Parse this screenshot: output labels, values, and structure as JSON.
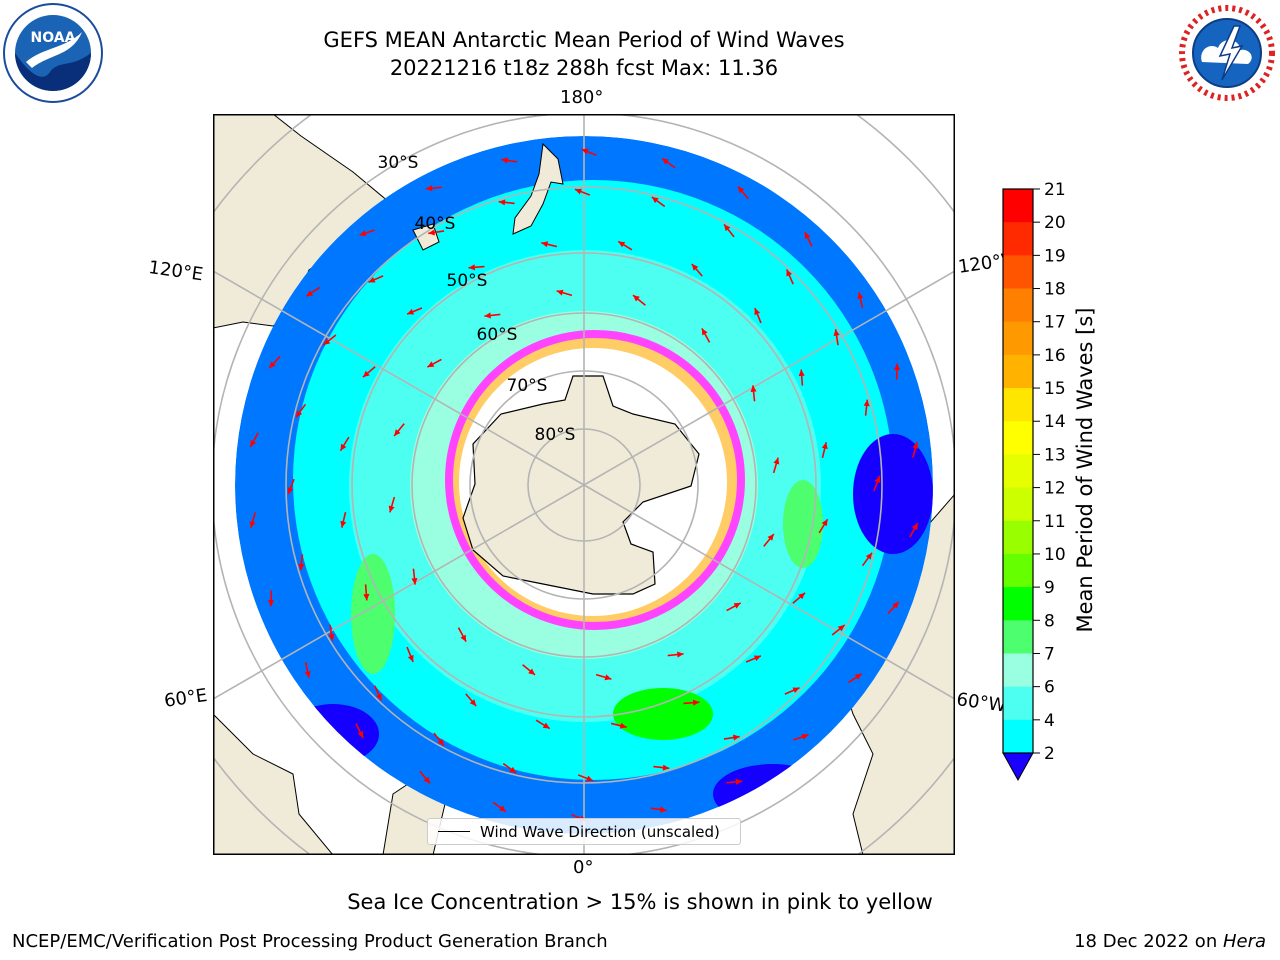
{
  "header": {
    "title_line1": "GEFS MEAN Antarctic Mean Period of Wind Waves",
    "title_line2": "20221216 t18z 288h fcst   Max: 11.36"
  },
  "logos": {
    "left": "NOAA",
    "right": "NATIONAL WEATHER SERVICE"
  },
  "map": {
    "projection": "south polar stereographic",
    "longitude_labels": {
      "top": "180°",
      "bottom": "0°",
      "upper_left": "120°E",
      "upper_right": "120°W",
      "lower_left": "60°E",
      "lower_right": "60°W"
    },
    "latitude_labels": [
      "30°S",
      "40°S",
      "50°S",
      "60°S",
      "70°S",
      "80°S"
    ]
  },
  "colorbar": {
    "label": "Mean Period of Wind Waves [s]",
    "ticks": [
      "21",
      "20",
      "19",
      "18",
      "17",
      "16",
      "15",
      "14",
      "13",
      "12",
      "11",
      "10",
      "9",
      "8",
      "7",
      "6",
      "4",
      "2"
    ],
    "band_colors": [
      "#ff0000",
      "#ff2a00",
      "#ff5500",
      "#ff8000",
      "#ff9900",
      "#ffb300",
      "#ffe600",
      "#ffff00",
      "#e6ff00",
      "#ccff00",
      "#99ff00",
      "#66ff00",
      "#00ff00",
      "#4dff6e",
      "#99ffe0",
      "#4dfff0",
      "#00ffff",
      "#0077ff",
      "#1500ff"
    ],
    "extend_color": "#1a00ff"
  },
  "legend": {
    "label": "Wind Wave Direction (unscaled)"
  },
  "notes": {
    "bottom": "Sea Ice Concentration > 15% is shown in pink to yellow",
    "credit_left": "NCEP/EMC/Verification Post Processing Product Generation Branch",
    "credit_right_prefix": "18 Dec 2022 on ",
    "credit_right_machine": "Hera"
  },
  "colors": {
    "land": "#efebd8",
    "grid": "#b4b4b4",
    "arrow": "#ff0000",
    "ice_low": "#ff44ff",
    "ice_high": "#ffcc66"
  }
}
